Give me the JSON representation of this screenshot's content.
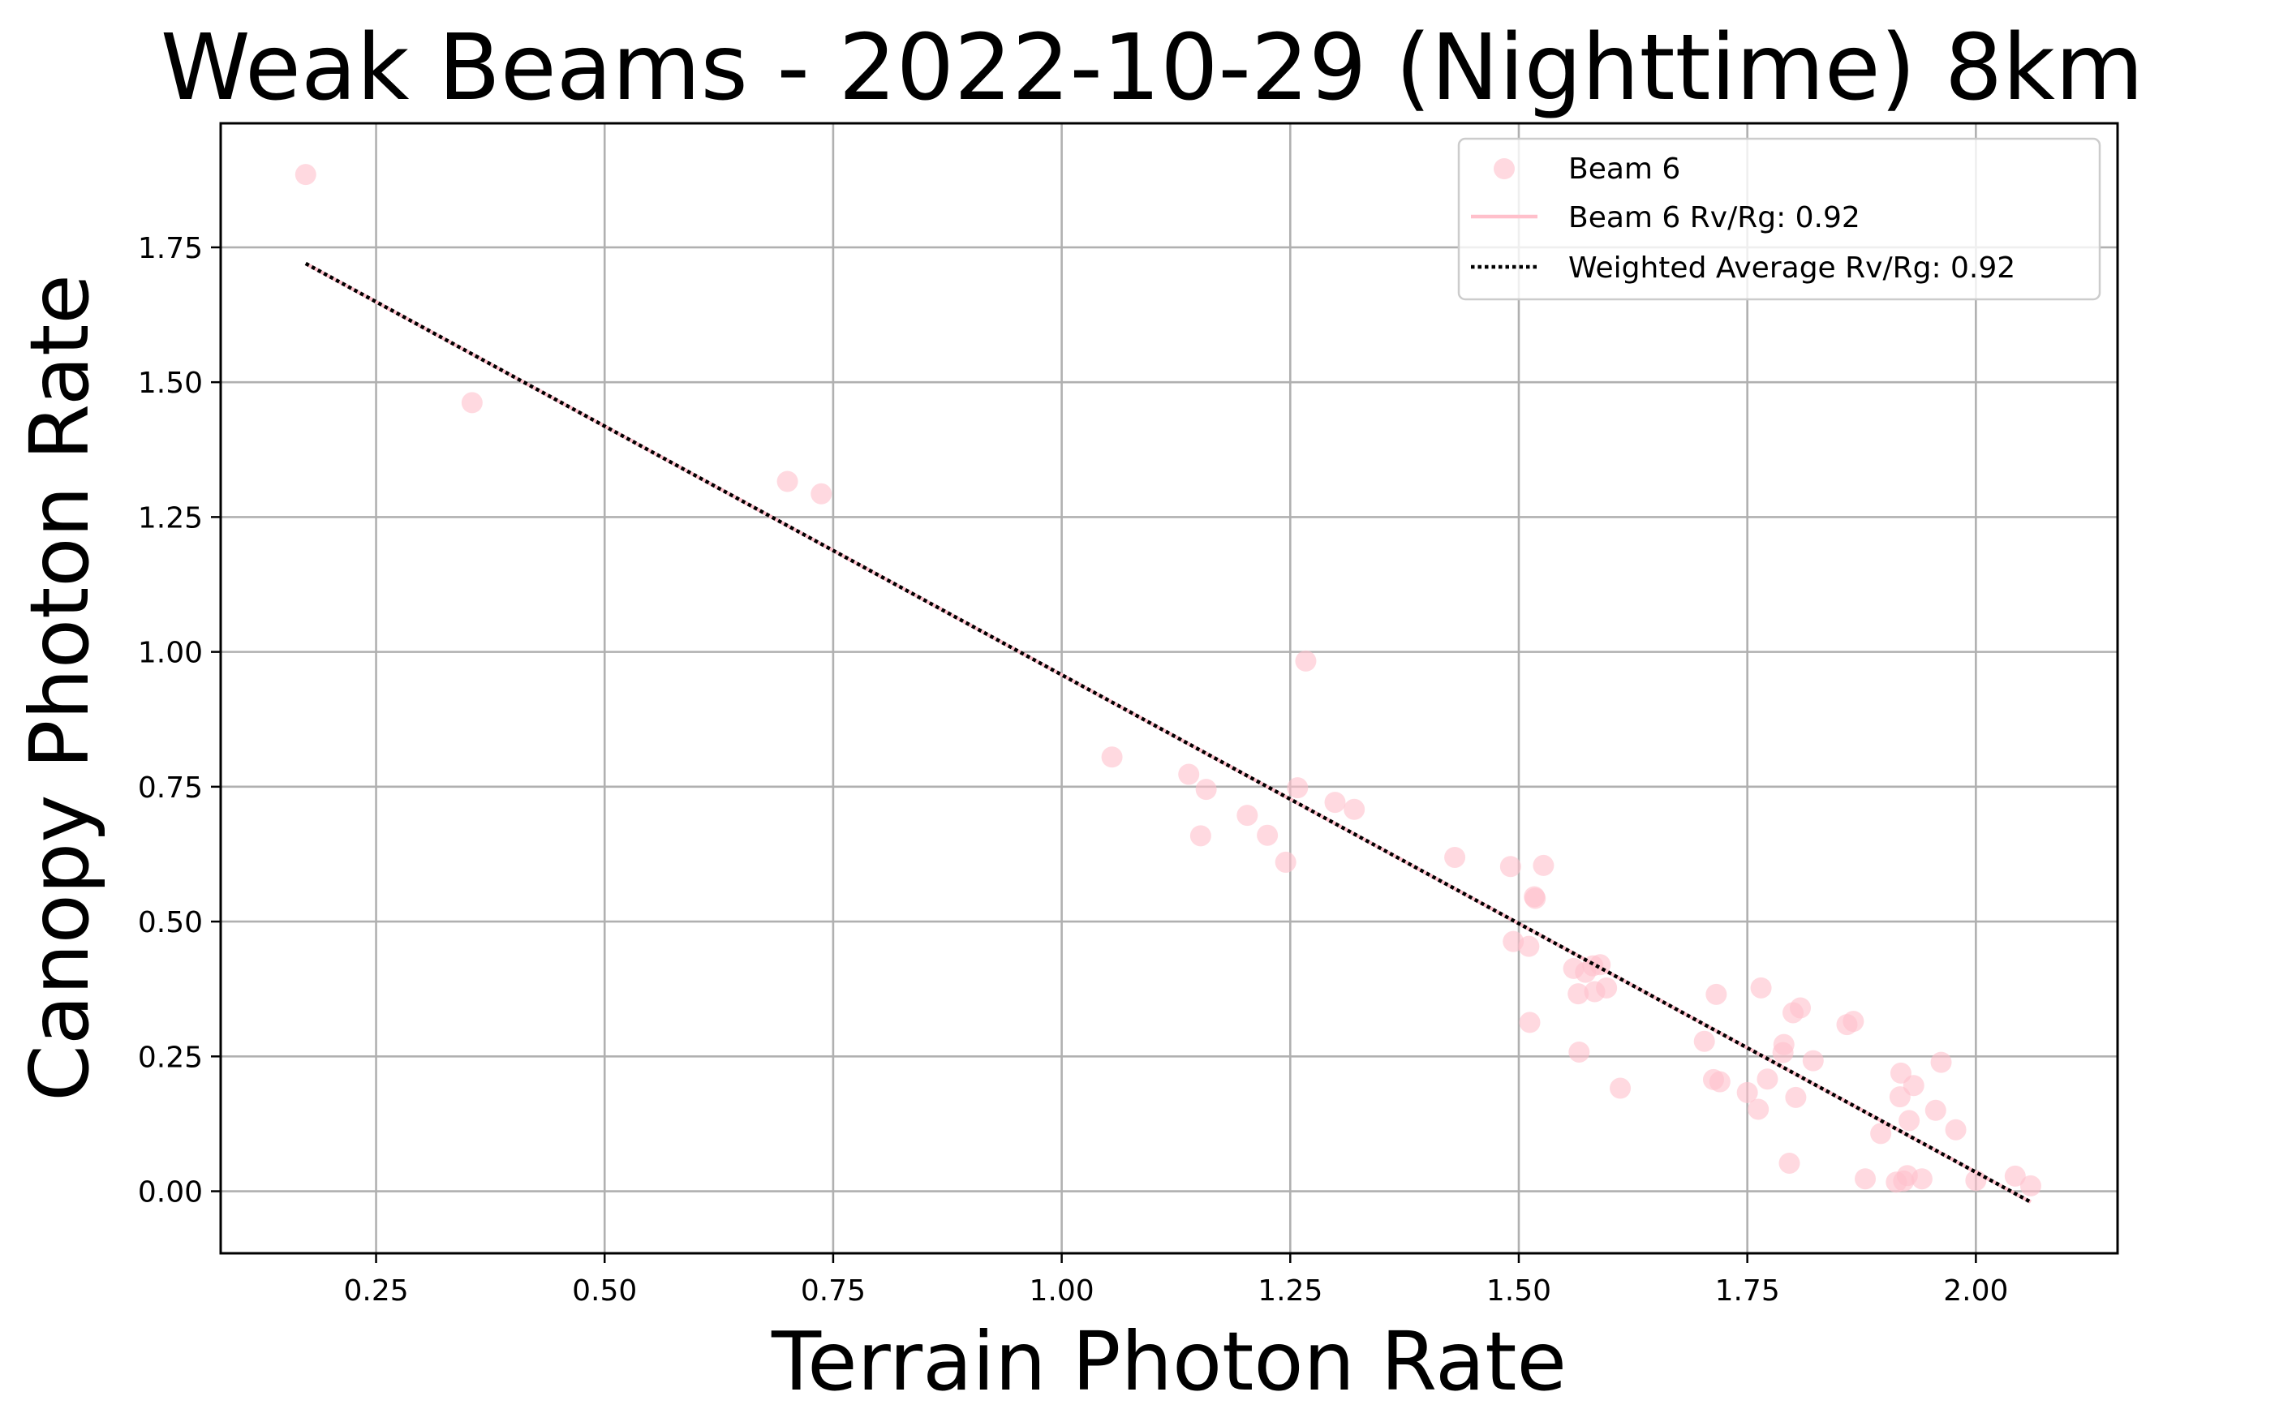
{
  "chart_data": {
    "type": "scatter",
    "title": "Weak Beams - 2022-10-29 (Nighttime) 8km",
    "xlabel": "Terrain Photon Rate",
    "ylabel": "Canopy Photon Rate",
    "xlim": [
      0.08,
      2.155
    ],
    "ylim": [
      -0.115,
      1.98
    ],
    "grid": true,
    "legend_position": "top-right",
    "xticks": [
      0.25,
      0.5,
      0.75,
      1.0,
      1.25,
      1.5,
      1.75,
      2.0
    ],
    "xtick_labels": [
      "0.25",
      "0.50",
      "0.75",
      "1.00",
      "1.25",
      "1.50",
      "1.75",
      "2.00"
    ],
    "yticks": [
      0.0,
      0.25,
      0.5,
      0.75,
      1.0,
      1.25,
      1.5,
      1.75
    ],
    "ytick_labels": [
      "0.00",
      "0.25",
      "0.50",
      "0.75",
      "1.00",
      "1.25",
      "1.50",
      "1.75"
    ],
    "colors": {
      "beam": "#ffc0cb",
      "average": "#000000"
    },
    "series": [
      {
        "name": "Beam 6",
        "kind": "scatter",
        "points": [
          [
            0.173,
            1.885
          ],
          [
            0.355,
            1.462
          ],
          [
            0.7,
            1.316
          ],
          [
            0.737,
            1.293
          ],
          [
            1.055,
            0.805
          ],
          [
            1.139,
            0.773
          ],
          [
            1.152,
            0.659
          ],
          [
            1.158,
            0.745
          ],
          [
            1.203,
            0.697
          ],
          [
            1.225,
            0.66
          ],
          [
            1.245,
            0.61
          ],
          [
            1.258,
            0.748
          ],
          [
            1.267,
            0.983
          ],
          [
            1.299,
            0.721
          ],
          [
            1.32,
            0.708
          ],
          [
            1.43,
            0.619
          ],
          [
            1.491,
            0.602
          ],
          [
            1.494,
            0.463
          ],
          [
            1.511,
            0.454
          ],
          [
            1.512,
            0.313
          ],
          [
            1.517,
            0.546
          ],
          [
            1.518,
            0.543
          ],
          [
            1.527,
            0.604
          ],
          [
            1.56,
            0.413
          ],
          [
            1.565,
            0.366
          ],
          [
            1.566,
            0.258
          ],
          [
            1.573,
            0.406
          ],
          [
            1.581,
            0.418
          ],
          [
            1.583,
            0.37
          ],
          [
            1.589,
            0.42
          ],
          [
            1.596,
            0.377
          ],
          [
            1.611,
            0.191
          ],
          [
            1.703,
            0.278
          ],
          [
            1.713,
            0.207
          ],
          [
            1.716,
            0.365
          ],
          [
            1.72,
            0.203
          ],
          [
            1.75,
            0.183
          ],
          [
            1.762,
            0.152
          ],
          [
            1.765,
            0.377
          ],
          [
            1.772,
            0.208
          ],
          [
            1.789,
            0.257
          ],
          [
            1.79,
            0.272
          ],
          [
            1.796,
            0.052
          ],
          [
            1.8,
            0.331
          ],
          [
            1.803,
            0.174
          ],
          [
            1.808,
            0.34
          ],
          [
            1.822,
            0.242
          ],
          [
            1.859,
            0.309
          ],
          [
            1.866,
            0.315
          ],
          [
            1.879,
            0.023
          ],
          [
            1.896,
            0.107
          ],
          [
            1.913,
            0.017
          ],
          [
            1.917,
            0.175
          ],
          [
            1.918,
            0.219
          ],
          [
            1.921,
            0.019
          ],
          [
            1.925,
            0.029
          ],
          [
            1.927,
            0.131
          ],
          [
            1.932,
            0.196
          ],
          [
            1.941,
            0.023
          ],
          [
            1.956,
            0.15
          ],
          [
            1.962,
            0.239
          ],
          [
            1.978,
            0.114
          ],
          [
            2.0,
            0.02
          ],
          [
            2.043,
            0.028
          ],
          [
            2.06,
            0.01
          ]
        ]
      },
      {
        "name": "Beam 6 Rv/Rg: 0.92",
        "kind": "line",
        "x": [
          0.173,
          2.06
        ],
        "y": [
          1.72,
          -0.02
        ]
      },
      {
        "name": "Weighted Average Rv/Rg: 0.92",
        "kind": "dotted-line",
        "x": [
          0.173,
          2.06
        ],
        "y": [
          1.72,
          -0.02
        ]
      }
    ],
    "legend": {
      "beam_points": "Beam 6",
      "beam_line": "Beam 6 Rv/Rg: 0.92",
      "average_line": "Weighted Average Rv/Rg: 0.92"
    }
  }
}
